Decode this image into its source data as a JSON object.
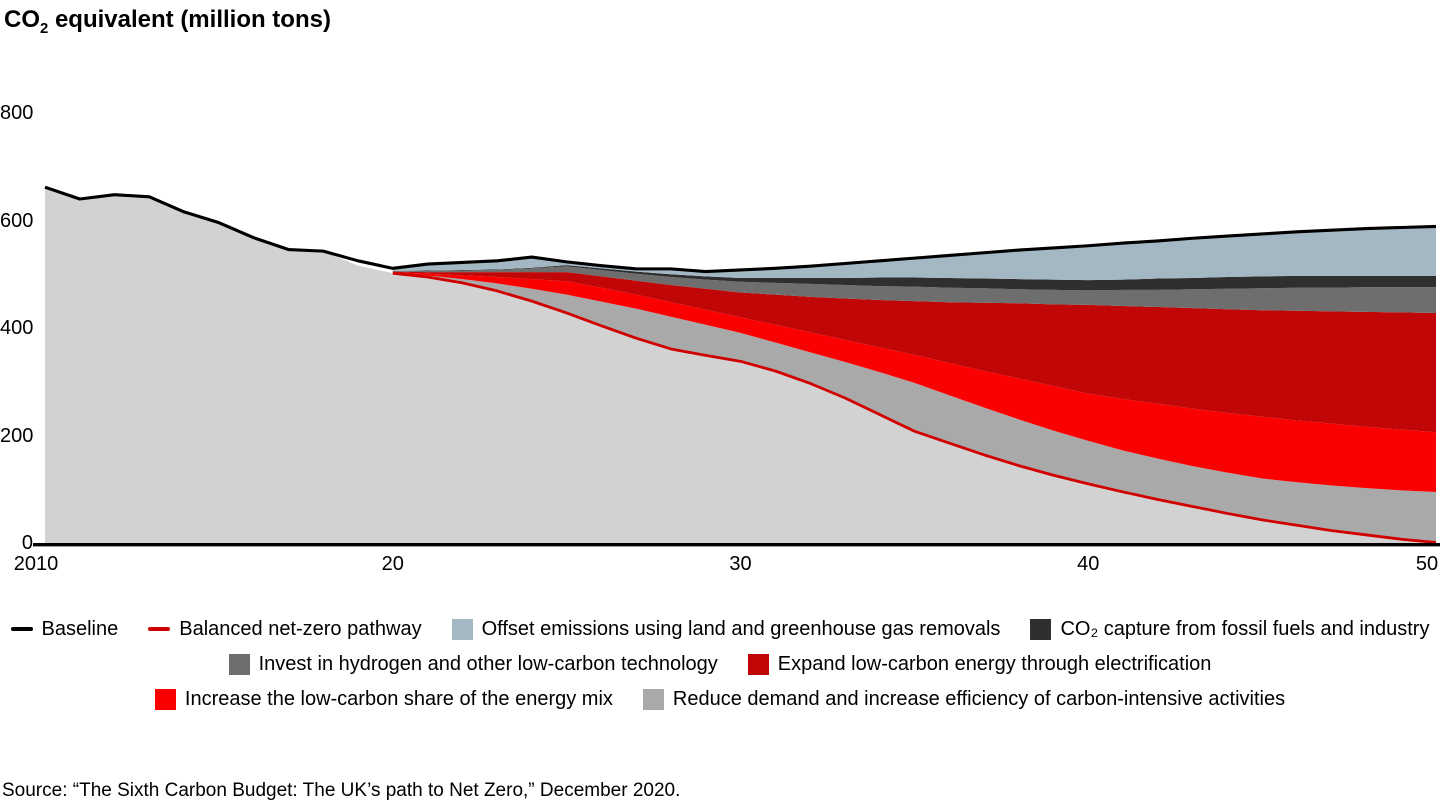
{
  "title": {
    "pre": "CO",
    "sub": "2",
    "rest": " equivalent (million tons)"
  },
  "source": "Source: “The Sixth Carbon Budget: The UK’s path to Net Zero,” December 2020.",
  "chart_data": {
    "type": "area",
    "title": "CO₂ equivalent (million tons)",
    "x_start": 2010,
    "x_end": 2050,
    "x_step": 1,
    "ylim": [
      0,
      800
    ],
    "yticks": [
      0,
      200,
      400,
      600,
      800
    ],
    "xticks": [
      {
        "year": 2010,
        "label": "2010"
      },
      {
        "year": 2020,
        "label": "20"
      },
      {
        "year": 2030,
        "label": "30"
      },
      {
        "year": 2040,
        "label": "40"
      },
      {
        "year": 2050,
        "label": "50"
      }
    ],
    "grid": false,
    "legend_position": "bottom",
    "baseline_line": {
      "name": "Baseline",
      "color": "#000000",
      "values": [
        662,
        640,
        648,
        644,
        616,
        596,
        568,
        546,
        543,
        525,
        511,
        519,
        522,
        525,
        532,
        523,
        516,
        510,
        510,
        505,
        508,
        511,
        515,
        520,
        525,
        530,
        535,
        540,
        545,
        549,
        553,
        558,
        562,
        567,
        571,
        575,
        579,
        582,
        585,
        587,
        589
      ]
    },
    "pathway_line": {
      "name": "Balanced net-zero pathway",
      "color": "#d10000",
      "start_year": 2020,
      "values": [
        502,
        495,
        484,
        469,
        450,
        428,
        404,
        381,
        361,
        349,
        338,
        320,
        297,
        270,
        239,
        208,
        186,
        164,
        144,
        126,
        110,
        95,
        81,
        68,
        55,
        43,
        33,
        23,
        15,
        7,
        1
      ]
    },
    "underlay_area": {
      "color": "#d2d2d2",
      "top_values": [
        662,
        640,
        648,
        644,
        616,
        596,
        568,
        546,
        543,
        516,
        502,
        495,
        484,
        469,
        450,
        428,
        404,
        381,
        361,
        349,
        338,
        320,
        297,
        270,
        239,
        208,
        186,
        164,
        144,
        126,
        110,
        95,
        81,
        68,
        55,
        43,
        33,
        23,
        15,
        7,
        1
      ]
    },
    "stacked_layers": {
      "start_year": 2020,
      "layers": [
        {
          "id": "reduce-demand",
          "name": "Reduce demand and increase efficiency of carbon-intensive activities",
          "color": "#a9a9a9",
          "top_values": [
            503,
            498,
            491,
            483,
            473,
            462,
            449,
            436,
            421,
            406,
            391,
            373,
            355,
            337,
            318,
            298,
            275,
            252,
            230,
            209,
            190,
            172,
            157,
            143,
            131,
            120,
            113,
            107,
            102,
            98,
            95
          ]
        },
        {
          "id": "low-carbon-share",
          "name": "Increase the low-carbon share of the energy mix",
          "color": "#fa0000",
          "top_values": [
            504,
            501,
            498,
            495,
            491,
            487,
            475,
            462,
            448,
            434,
            420,
            406,
            392,
            378,
            364,
            350,
            335,
            320,
            306,
            292,
            278,
            268,
            259,
            250,
            242,
            235,
            228,
            222,
            216,
            211,
            206
          ]
        },
        {
          "id": "electrification",
          "name": "Expand low-carbon energy through electrification",
          "color": "#c00606",
          "top_values": [
            505,
            504,
            504,
            504,
            504,
            504,
            496,
            488,
            480,
            473,
            466,
            462,
            458,
            455,
            452,
            450,
            448,
            447,
            446,
            444,
            443,
            441,
            439,
            437,
            435,
            433,
            432,
            431,
            430,
            429,
            428
          ]
        },
        {
          "id": "hydrogen",
          "name": "Invest in hydrogen and other low-carbon technology",
          "color": "#6e6e6e",
          "top_values": [
            506,
            506,
            507,
            508,
            511,
            515,
            508,
            501,
            495,
            490,
            486,
            484,
            482,
            480,
            478,
            477,
            475,
            474,
            472,
            471,
            470,
            471,
            471,
            472,
            473,
            474,
            475,
            475,
            476,
            476,
            476
          ]
        },
        {
          "id": "co2-capture",
          "name": "CO₂ capture from fossil fuels and industry",
          "color": "#2f2f2f",
          "top_values": [
            506,
            507,
            508,
            509,
            512,
            517,
            511,
            505,
            500,
            496,
            493,
            493,
            493,
            493,
            494,
            494,
            493,
            492,
            491,
            490,
            489,
            490,
            492,
            493,
            495,
            496,
            497,
            497,
            497,
            497,
            497
          ]
        },
        {
          "id": "offsets",
          "name": "Offset emissions using land and greenhouse gas removals",
          "color": "#a4b8c4",
          "top_values": [
            511,
            519,
            522,
            525,
            532,
            523,
            516,
            510,
            510,
            505,
            508,
            511,
            515,
            520,
            525,
            530,
            535,
            540,
            545,
            549,
            553,
            558,
            562,
            567,
            571,
            575,
            579,
            582,
            585,
            587,
            589
          ]
        }
      ]
    }
  },
  "legend": {
    "rows": [
      [
        {
          "swatch": "line",
          "color": "#000000",
          "label": "Baseline"
        },
        {
          "swatch": "line",
          "color": "#d10000",
          "label": "Balanced net-zero pathway"
        },
        {
          "swatch": "square",
          "color": "#a4b8c4",
          "label": "Offset emissions using land and greenhouse gas removals"
        },
        {
          "swatch": "square",
          "color": "#2f2f2f",
          "label": "CO₂ capture from fossil fuels and industry"
        }
      ],
      [
        {
          "swatch": "square",
          "color": "#6e6e6e",
          "label": "Invest in hydrogen and other low-carbon technology"
        },
        {
          "swatch": "square",
          "color": "#c00606",
          "label": "Expand low-carbon energy through electrification"
        }
      ],
      [
        {
          "swatch": "square",
          "color": "#fa0000",
          "label": "Increase the low-carbon share of the energy mix"
        },
        {
          "swatch": "square",
          "color": "#a9a9a9",
          "label": "Reduce demand and increase efficiency of carbon-intensive activities"
        }
      ]
    ]
  }
}
